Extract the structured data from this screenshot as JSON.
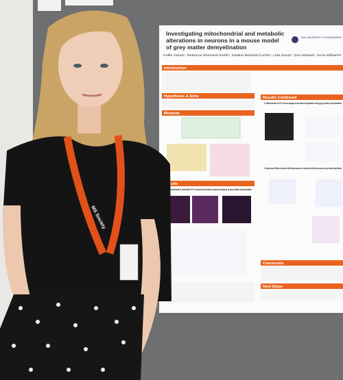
{
  "poster": {
    "title_lines": [
      "Investigating mitochondrial and metabolic",
      "alterations in neurons in a mouse model",
      "of grey matter demyelination"
    ],
    "authors": "Kellie Horan¹, Rebecca Sherrard-Smith¹, Nadine Bestard-Cuche¹, Lida Zoupi¹, Don Mahad¹, Anna Williams¹",
    "university": "THE UNIVERSITY of EDINBURGH",
    "sections": {
      "introduction": "Introduction",
      "hypothesis": "Hypothesis & Aims",
      "methods": "Methods",
      "results": "Results",
      "results_continued": "Results Continued",
      "conclusion": "Conclusion",
      "next_steps": "Next Steps"
    },
    "captions": {
      "fig1": "1. Mitochondria in vulnerable PV+ neuronal cell bodies respond uniquely to grey matter demyelination",
      "fig3": "3. Mitochondria in PV+ axons display some altered dynamics during grey matter demyelination",
      "fig4": "4. Single-nucleus RNAseq reveals the differential responses of excitatory and inhibitory neurons to grey matter demyelination"
    }
  },
  "lanyard": {
    "text": "MS Society"
  }
}
